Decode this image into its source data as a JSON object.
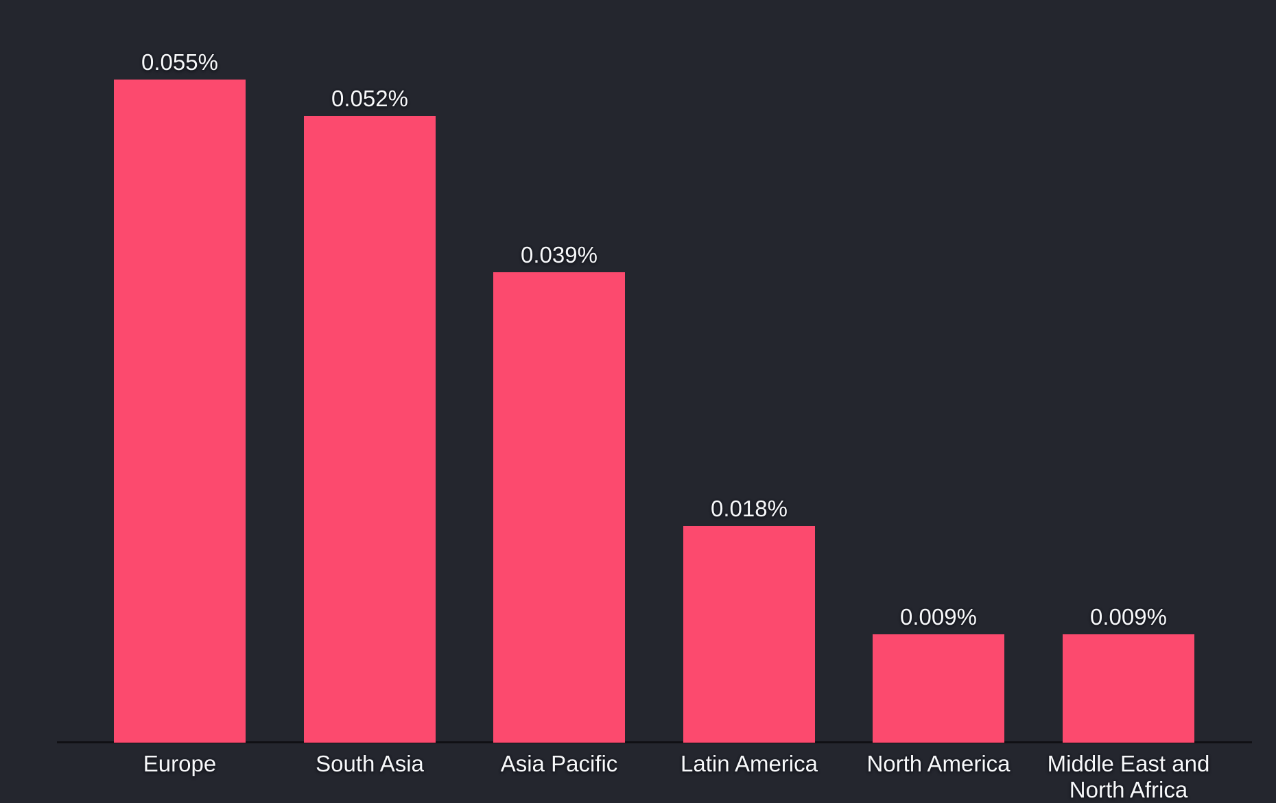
{
  "chart_data": {
    "type": "bar",
    "title": "",
    "xlabel": "",
    "ylabel": "",
    "categories": [
      "Europe",
      "South Asia",
      "Asia Pacific",
      "Latin America",
      "North America",
      "Middle East and North Africa"
    ],
    "values": [
      0.055,
      0.052,
      0.039,
      0.018,
      0.009,
      0.009
    ],
    "value_labels": [
      "0.055%",
      "0.052%",
      "0.039%",
      "0.018%",
      "0.009%",
      "0.009%"
    ],
    "unit": "%",
    "ylim": [
      0,
      0.0615
    ],
    "grid": false,
    "legend_position": "none",
    "orientation": "vertical",
    "colors": {
      "bar": "#fc4a6e",
      "background": "#24262e",
      "axis_line": "#101014",
      "label_text": "#f7f8fa"
    }
  }
}
